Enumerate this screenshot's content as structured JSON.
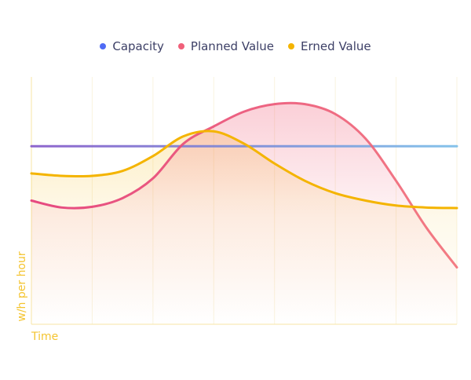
{
  "chart_data": {
    "type": "line",
    "xlabel": "Time",
    "ylabel": "w/h per hour",
    "legend_position": "top-center",
    "grid": true,
    "grid_axis": "x",
    "xlim": [
      0,
      7
    ],
    "ylim": [
      0,
      10
    ],
    "x": [
      0,
      0.5,
      1,
      1.5,
      2,
      2.5,
      3,
      3.5,
      4,
      4.5,
      5,
      5.5,
      6,
      6.5,
      7
    ],
    "series": [
      {
        "name": "Capacity",
        "color": "#4f6bf5",
        "colors": [
          "#8559c9",
          "#7a8ad8",
          "#7bbde8"
        ],
        "values": [
          7.2,
          7.2,
          7.2,
          7.2,
          7.2,
          7.2,
          7.2,
          7.2,
          7.2,
          7.2,
          7.2,
          7.2,
          7.2,
          7.2,
          7.2
        ],
        "fill": false
      },
      {
        "name": "Planned Value",
        "color": "#f0607a",
        "colors": [
          "#e43b78",
          "#f2717a"
        ],
        "values": [
          5.0,
          4.72,
          4.75,
          5.1,
          5.9,
          7.3,
          8.0,
          8.6,
          8.9,
          8.9,
          8.5,
          7.5,
          5.8,
          3.9,
          2.3
        ],
        "fill": true
      },
      {
        "name": "Erned Value",
        "color": "#f4b400",
        "colors": [
          "#f4b400"
        ],
        "values": [
          6.1,
          6.0,
          6.0,
          6.2,
          6.8,
          7.6,
          7.8,
          7.3,
          6.5,
          5.8,
          5.3,
          5.0,
          4.8,
          4.72,
          4.7
        ],
        "fill": true
      }
    ]
  }
}
